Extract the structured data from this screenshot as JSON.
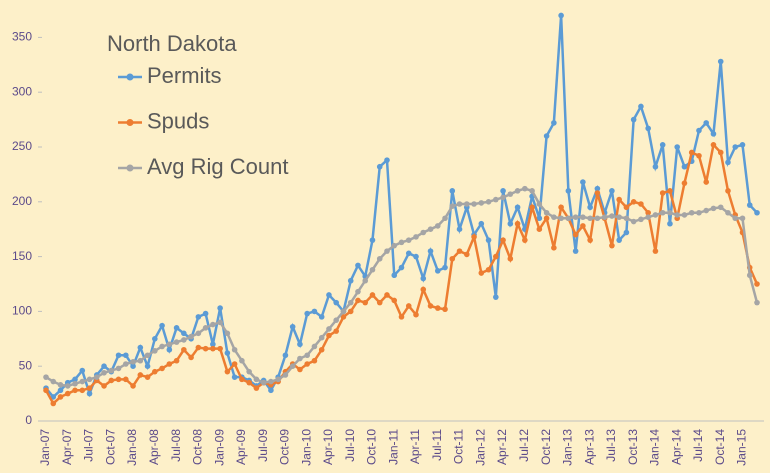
{
  "chart_data": {
    "type": "line",
    "title": "North Dakota",
    "categories": [
      "Jan-07",
      null,
      null,
      "Apr-07",
      null,
      null,
      "Jul-07",
      null,
      null,
      "Oct-07",
      null,
      null,
      "Jan-08",
      null,
      null,
      "Apr-08",
      null,
      null,
      "Jul-08",
      null,
      null,
      "Oct-08",
      null,
      null,
      "Jan-09",
      null,
      null,
      "Apr-09",
      null,
      null,
      "Jul-09",
      null,
      null,
      "Oct-09",
      null,
      null,
      "Jan-10",
      null,
      null,
      "Apr-10",
      null,
      null,
      "Jul-10",
      null,
      null,
      "Oct-10",
      null,
      null,
      "Jan-11",
      null,
      null,
      "Apr-11",
      null,
      null,
      "Jul-11",
      null,
      null,
      "Oct-11",
      null,
      null,
      "Jan-12",
      null,
      null,
      "Apr-12",
      null,
      null,
      "Jul-12",
      null,
      null,
      "Oct-12",
      null,
      null,
      "Jan-13",
      null,
      null,
      "Apr-13",
      null,
      null,
      "Jul-13",
      null,
      null,
      "Oct-13",
      null,
      null,
      "Jan-14",
      null,
      null,
      "Apr-14",
      null,
      null,
      "Jul-14",
      null,
      null,
      "Oct-14",
      null,
      null,
      "Jan-15",
      null,
      null
    ],
    "series": [
      {
        "name": "Permits",
        "color": "#5b9bd5",
        "values": [
          30,
          22,
          28,
          35,
          38,
          46,
          25,
          42,
          50,
          45,
          60,
          60,
          50,
          67,
          50,
          75,
          87,
          65,
          85,
          80,
          75,
          95,
          98,
          70,
          103,
          62,
          40,
          40,
          37,
          32,
          37,
          28,
          40,
          60,
          86,
          70,
          98,
          100,
          95,
          115,
          108,
          100,
          128,
          142,
          132,
          165,
          232,
          238,
          133,
          140,
          153,
          150,
          130,
          155,
          137,
          140,
          210,
          175,
          195,
          170,
          180,
          165,
          113,
          210,
          180,
          195,
          175,
          205,
          185,
          260,
          272,
          370,
          210,
          155,
          218,
          195,
          212,
          190,
          210,
          165,
          172,
          275,
          287,
          267,
          232,
          252,
          180,
          250,
          232,
          237,
          265,
          272,
          262,
          328,
          236,
          250,
          252,
          197,
          190
        ]
      },
      {
        "name": "Spuds",
        "color": "#ed7d31",
        "values": [
          28,
          16,
          22,
          25,
          28,
          28,
          30,
          37,
          32,
          37,
          38,
          38,
          32,
          42,
          40,
          45,
          48,
          52,
          55,
          65,
          58,
          67,
          66,
          66,
          66,
          45,
          52,
          38,
          35,
          30,
          35,
          33,
          36,
          45,
          52,
          47,
          52,
          55,
          65,
          78,
          82,
          95,
          100,
          110,
          108,
          115,
          108,
          115,
          110,
          95,
          105,
          97,
          120,
          105,
          103,
          102,
          148,
          155,
          152,
          168,
          135,
          138,
          150,
          165,
          148,
          180,
          165,
          195,
          175,
          185,
          158,
          195,
          185,
          170,
          178,
          165,
          208,
          185,
          160,
          202,
          195,
          200,
          198,
          190,
          155,
          208,
          210,
          185,
          217,
          245,
          242,
          218,
          252,
          245,
          210,
          188,
          172,
          140,
          125
        ]
      },
      {
        "name": "Avg Rig Count",
        "color": "#a5a5a5",
        "values": [
          40,
          36,
          33,
          32,
          34,
          36,
          38,
          40,
          44,
          46,
          48,
          52,
          54,
          55,
          60,
          64,
          68,
          70,
          72,
          74,
          77,
          80,
          85,
          88,
          90,
          80,
          65,
          55,
          45,
          38,
          35,
          36,
          38,
          42,
          50,
          57,
          60,
          68,
          76,
          84,
          92,
          100,
          108,
          118,
          128,
          138,
          148,
          155,
          160,
          163,
          165,
          168,
          172,
          175,
          178,
          185,
          196,
          198,
          198,
          198,
          199,
          200,
          202,
          204,
          207,
          210,
          212,
          210,
          198,
          190,
          186,
          185,
          185,
          186,
          186,
          185,
          185,
          186,
          187,
          186,
          185,
          182,
          184,
          186,
          188,
          190,
          190,
          188,
          188,
          190,
          190,
          192,
          194,
          195,
          190,
          185,
          185,
          133,
          108
        ]
      }
    ],
    "ylim": [
      0,
      375
    ],
    "yticks": [
      0,
      50,
      100,
      150,
      200,
      250,
      300,
      350
    ]
  }
}
